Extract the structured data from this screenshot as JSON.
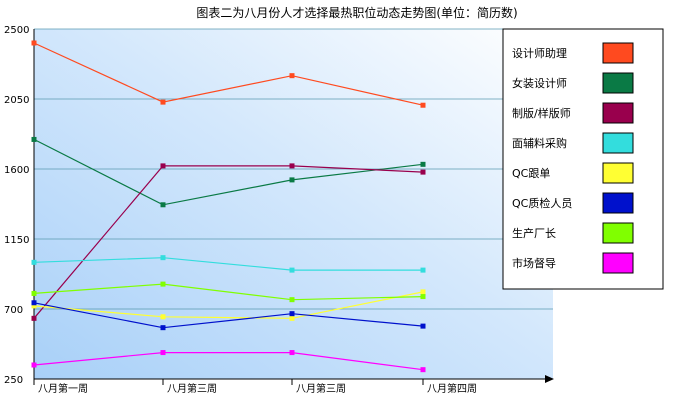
{
  "chart_data": {
    "type": "line",
    "title": "图表二为八月份人才选择最热职位动态走势图(单位：简历数)",
    "categories": [
      "八月第一周",
      "八月第三周",
      "八月第三周",
      "八月第四周"
    ],
    "ylim": [
      250,
      2500
    ],
    "yticks": [
      250,
      700,
      1150,
      1600,
      2050,
      2500
    ],
    "grid": true,
    "legend_position": "right",
    "series": [
      {
        "name": "设计师助理",
        "color": "#ff4a1f",
        "values": [
          2410,
          2030,
          2200,
          2010
        ]
      },
      {
        "name": "女装设计师",
        "color": "#0a7a45",
        "values": [
          1790,
          1370,
          1530,
          1630
        ]
      },
      {
        "name": "制版/样版师",
        "color": "#99004d",
        "values": [
          640,
          1620,
          1620,
          1580
        ]
      },
      {
        "name": "面辅料采购",
        "color": "#33dddd",
        "values": [
          1000,
          1030,
          950,
          950
        ]
      },
      {
        "name": "QC跟单",
        "color": "#ffff33",
        "values": [
          720,
          650,
          640,
          810
        ]
      },
      {
        "name": "QC质检人员",
        "color": "#0011cc",
        "values": [
          740,
          580,
          670,
          590
        ]
      },
      {
        "name": "生产厂长",
        "color": "#80ff00",
        "values": [
          800,
          860,
          760,
          780
        ]
      },
      {
        "name": "市场督导",
        "color": "#ff00ff",
        "values": [
          340,
          420,
          420,
          310
        ]
      }
    ]
  }
}
